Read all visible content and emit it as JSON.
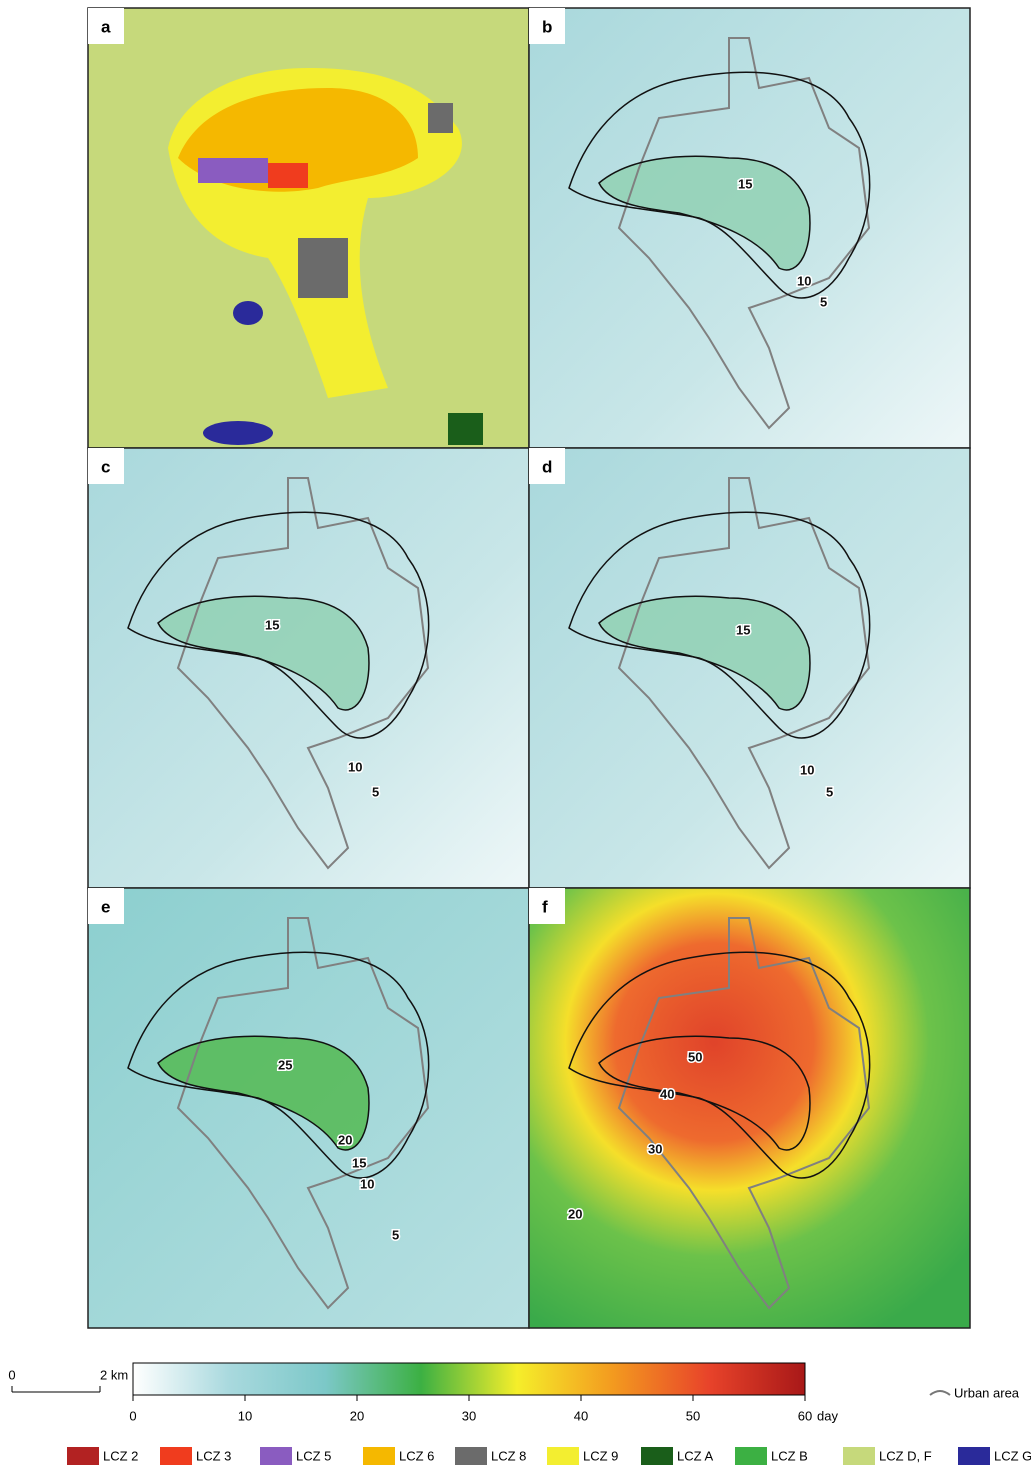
{
  "panels": [
    {
      "label": "a",
      "kind": "lcz"
    },
    {
      "label": "b",
      "kind": "days",
      "contour_labels": [
        15,
        10,
        5
      ]
    },
    {
      "label": "c",
      "kind": "days",
      "contour_labels": [
        15,
        10,
        5
      ]
    },
    {
      "label": "d",
      "kind": "days",
      "contour_labels": [
        15,
        10,
        5
      ]
    },
    {
      "label": "e",
      "kind": "days",
      "contour_labels": [
        25,
        20,
        15,
        10,
        5
      ]
    },
    {
      "label": "f",
      "kind": "hot",
      "contour_labels": [
        50,
        40,
        30,
        20
      ]
    }
  ],
  "scale_bar": {
    "start": "0",
    "end": "2 km"
  },
  "colorbar": {
    "lim": [
      0,
      60
    ],
    "ticks": [
      0,
      10,
      20,
      30,
      40,
      50,
      60
    ],
    "unit": "day",
    "colors": [
      "#ffffff",
      "#a9d9de",
      "#7cc8c8",
      "#3cb043",
      "#f5ee2a",
      "#f39a1f",
      "#e8432a",
      "#a81818"
    ]
  },
  "urban_legend": "Urban area",
  "lcz_legend": [
    {
      "name": "LCZ 2",
      "color": "#b22222"
    },
    {
      "name": "LCZ 3",
      "color": "#f03c1e"
    },
    {
      "name": "LCZ 5",
      "color": "#8a5cc0"
    },
    {
      "name": "LCZ 6",
      "color": "#f5b800"
    },
    {
      "name": "LCZ 8",
      "color": "#6b6b6b"
    },
    {
      "name": "LCZ 9",
      "color": "#f3ee30"
    },
    {
      "name": "LCZ A",
      "color": "#1a5e1a"
    },
    {
      "name": "LCZ B",
      "color": "#3cb043"
    },
    {
      "name": "LCZ D, F",
      "color": "#c6d97b"
    },
    {
      "name": "LCZ G",
      "color": "#2a2a9a"
    }
  ]
}
